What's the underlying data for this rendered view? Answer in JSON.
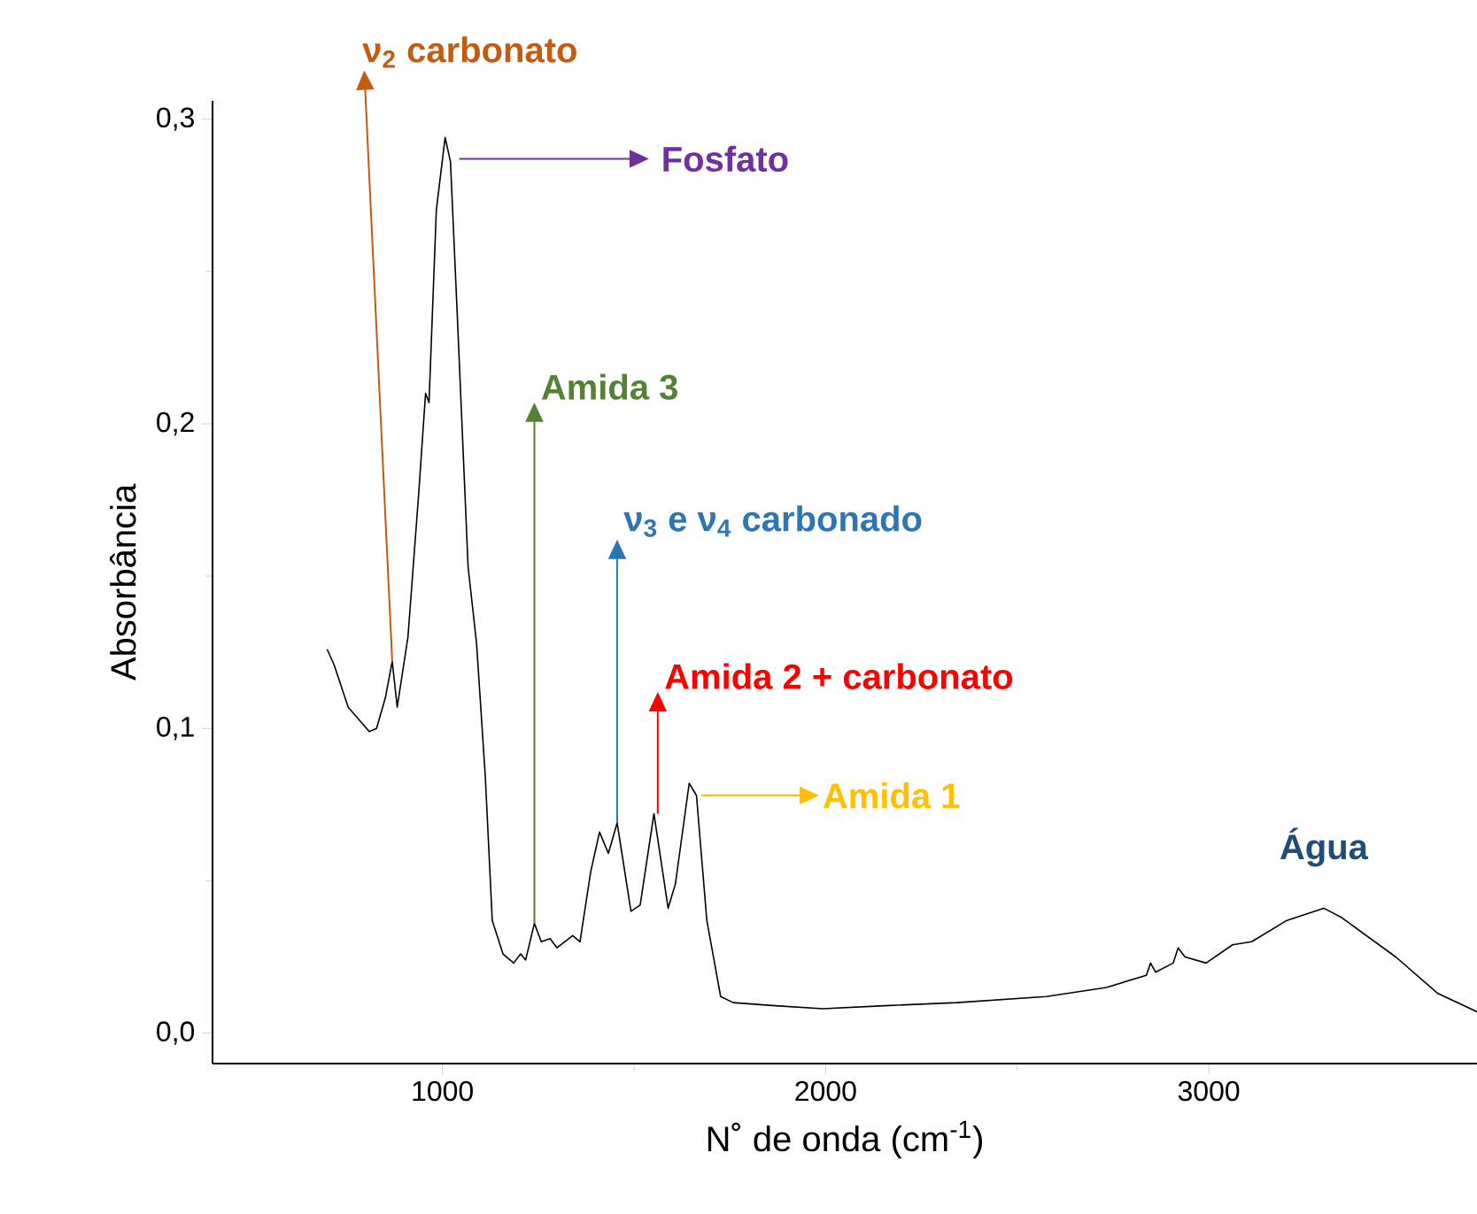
{
  "chart_data": {
    "type": "line",
    "xlabel": "N˚ de onda (cm$^{-1}$)",
    "ylabel": "Absorbância",
    "xlim": [
      400,
      3700
    ],
    "ylim": [
      -0.01,
      0.306
    ],
    "xticks": [
      1000,
      2000,
      3000
    ],
    "yticks": [
      {
        "value": 0,
        "label": "0,0"
      },
      {
        "value": 0.1,
        "label": "0,1"
      },
      {
        "value": 0.2,
        "label": "0,2"
      },
      {
        "value": 0.3,
        "label": "0,3"
      }
    ],
    "grid": false,
    "line_style": "solid",
    "series": [
      {
        "color": "#000000",
        "x": [
          699,
          717,
          754,
          809,
          828,
          851,
          869,
          882,
          910,
          938,
          956,
          965,
          984,
          1007,
          1021,
          1039,
          1067,
          1089,
          1112,
          1130,
          1158,
          1186,
          1204,
          1217,
          1240,
          1258,
          1281,
          1299,
          1340,
          1359,
          1387,
          1410,
          1433,
          1456,
          1492,
          1516,
          1552,
          1589,
          1608,
          1644,
          1663,
          1690,
          1726,
          1759,
          1869,
          1993,
          2153,
          2342,
          2576,
          2733,
          2837,
          2848,
          2861,
          2907,
          2920,
          2938,
          2993,
          3062,
          3112,
          3204,
          3300,
          3346,
          3488,
          3598,
          3700
        ],
        "values": [
          0.126,
          0.121,
          0.107,
          0.099,
          0.1,
          0.11,
          0.122,
          0.107,
          0.13,
          0.177,
          0.21,
          0.207,
          0.27,
          0.294,
          0.286,
          0.235,
          0.153,
          0.128,
          0.084,
          0.037,
          0.026,
          0.023,
          0.026,
          0.024,
          0.036,
          0.03,
          0.031,
          0.028,
          0.032,
          0.03,
          0.053,
          0.066,
          0.059,
          0.069,
          0.04,
          0.042,
          0.072,
          0.041,
          0.049,
          0.082,
          0.078,
          0.037,
          0.012,
          0.01,
          0.009,
          0.008,
          0.009,
          0.01,
          0.012,
          0.015,
          0.019,
          0.023,
          0.02,
          0.023,
          0.028,
          0.025,
          0.023,
          0.029,
          0.03,
          0.037,
          0.041,
          0.038,
          0.025,
          0.013,
          0.007
        ]
      }
    ],
    "annotations": [
      {
        "text": "ν$_{2}$ carbonato",
        "x": 869,
        "y": 0.122
      },
      {
        "text": "Fosfato",
        "x": 1044,
        "y": 0.287
      },
      {
        "text": "Amida 3",
        "x": 1240,
        "y": 0.036
      },
      {
        "text": "ν$_{3}$ e ν$_{4}$ carbonado",
        "x": 1456,
        "y": 0.069
      },
      {
        "text": "Amida 2 + carbonato",
        "x": 1562,
        "y": 0.072
      },
      {
        "text": "Amida 1",
        "x": 1676,
        "y": 0.078
      },
      {
        "text": "Água",
        "x": 3300,
        "y": 0.041
      }
    ]
  }
}
